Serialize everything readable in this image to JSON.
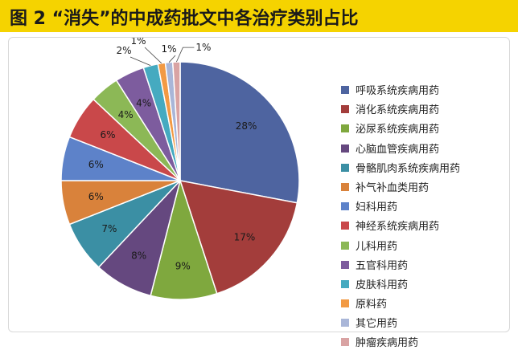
{
  "title": "图 2 “消失”的中成药批文中各治疗类别占比",
  "chart_data": {
    "type": "pie",
    "title": "图 2 “消失”的中成药批文中各治疗类别占比",
    "legend_position": "right",
    "slices": [
      {
        "name": "呼吸系统疾病用药",
        "value": 28,
        "label": "28%",
        "color": "#4e64a0"
      },
      {
        "name": "消化系统疾病用药",
        "value": 17,
        "label": "17%",
        "color": "#a33d3b"
      },
      {
        "name": "泌尿系统疾病用药",
        "value": 9,
        "label": "9%",
        "color": "#7fa83e"
      },
      {
        "name": "心脑血管疾病用药",
        "value": 8,
        "label": "8%",
        "color": "#65487f"
      },
      {
        "name": "骨骼肌肉系统疾病用药",
        "value": 7,
        "label": "7%",
        "color": "#3b8fa4"
      },
      {
        "name": "补气补血类用药",
        "value": 6,
        "label": "6%",
        "color": "#d9823b"
      },
      {
        "name": "妇科用药",
        "value": 6,
        "label": "6%",
        "color": "#5d82c9"
      },
      {
        "name": "神经系统疾病用药",
        "value": 6,
        "label": "6%",
        "color": "#c9484a"
      },
      {
        "name": "儿科用药",
        "value": 4,
        "label": "4%",
        "color": "#8cb856"
      },
      {
        "name": "五官科用药",
        "value": 4,
        "label": "4%",
        "color": "#7d5c9e"
      },
      {
        "name": "皮肤科用药",
        "value": 2,
        "label": "2%",
        "color": "#45aac0"
      },
      {
        "name": "原料药",
        "value": 1,
        "label": "1%",
        "color": "#f29a44"
      },
      {
        "name": "其它用药",
        "value": 1,
        "label": "1%",
        "color": "#a9b6d8"
      },
      {
        "name": "肿瘤疾病用药",
        "value": 1,
        "label": "1%",
        "color": "#d9a3a3"
      }
    ]
  }
}
